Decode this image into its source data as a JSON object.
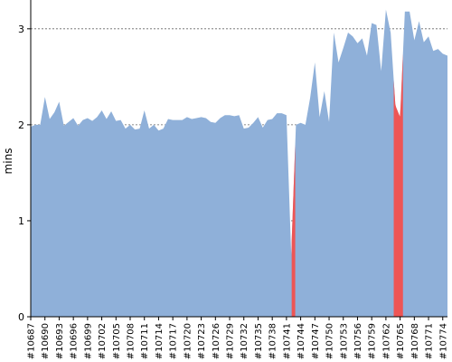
{
  "chart_data": {
    "type": "area",
    "ylabel": "mins",
    "ylim": [
      0,
      3.3
    ],
    "yticks": [
      0,
      1,
      2,
      3
    ],
    "grid": "horizontal dashed",
    "x_tick_labels": [
      "#10687",
      "#10690",
      "#10693",
      "#10696",
      "#10699",
      "#10702",
      "#10705",
      "#10708",
      "#10711",
      "#10714",
      "#10717",
      "#10720",
      "#10723",
      "#10726",
      "#10729",
      "#10732",
      "#10735",
      "#10738",
      "#10741",
      "#10744",
      "#10747",
      "#10750",
      "#10753",
      "#10756",
      "#10759",
      "#10762",
      "#10765",
      "#10768",
      "#10771",
      "#10774"
    ],
    "x_start": 10687,
    "x_end": 10775,
    "series": [
      {
        "color": "#8fb0d9",
        "values": [
          1.98,
          2.0,
          2.0,
          2.29,
          2.06,
          2.13,
          2.24,
          1.99,
          2.03,
          2.07,
          1.99,
          2.05,
          2.07,
          2.04,
          2.08,
          2.15,
          2.06,
          2.14,
          2.04,
          2.05,
          1.96,
          2.0,
          1.95,
          1.96,
          2.15,
          1.96,
          2.0,
          1.94,
          1.96,
          2.06,
          2.05,
          2.05,
          2.05,
          2.08,
          2.06,
          2.07,
          2.08,
          2.07,
          2.03,
          2.02,
          2.07,
          2.1,
          2.1,
          2.09,
          2.1,
          1.96,
          1.97,
          2.02,
          2.08,
          1.97,
          2.05,
          2.06,
          2.12,
          2.12,
          2.1,
          0.65,
          2.0,
          2.02,
          2.0,
          2.28,
          2.65,
          2.08,
          2.35,
          2.03,
          2.96,
          2.65,
          2.8,
          2.96,
          2.92,
          2.85,
          2.9,
          2.72,
          3.06,
          3.04,
          2.56,
          3.2,
          2.96,
          2.2,
          2.08,
          3.18,
          3.18,
          2.88,
          3.08,
          2.86,
          2.92,
          2.77,
          2.79,
          2.74,
          2.72
        ]
      }
    ],
    "highlights": [
      {
        "color": "#ee5555",
        "from": 10742.1,
        "to": 10742.85
      },
      {
        "color": "#ee5555",
        "from": 10763.65,
        "to": 10765.6
      }
    ]
  }
}
